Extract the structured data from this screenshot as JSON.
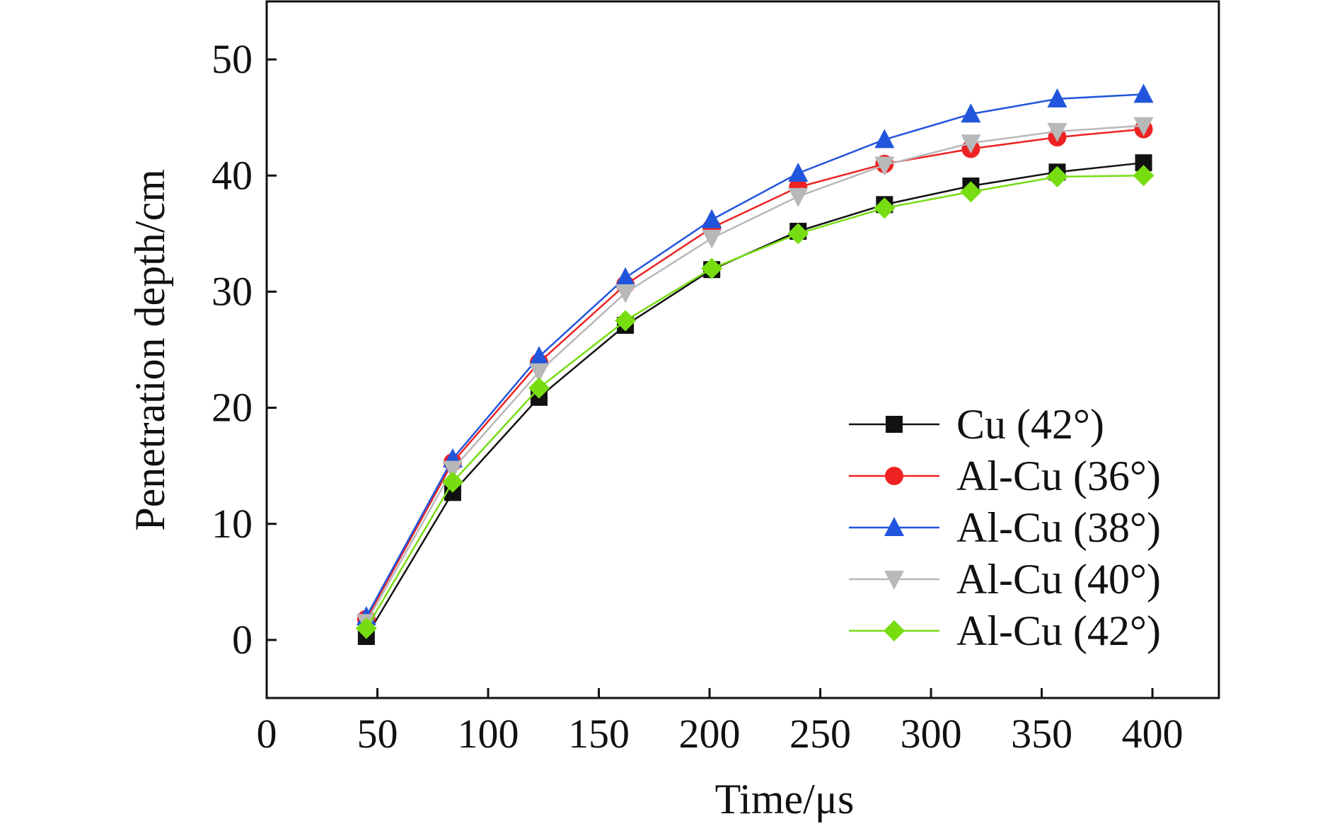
{
  "chart_data": {
    "type": "line",
    "title": "",
    "xlabel": "Time/μs",
    "ylabel": "Penetration depth/cm",
    "xlim": [
      0,
      430
    ],
    "ylim": [
      -5,
      55
    ],
    "xticks": [
      0,
      50,
      100,
      150,
      200,
      250,
      300,
      350,
      400
    ],
    "yticks": [
      0,
      10,
      20,
      30,
      40,
      50
    ],
    "x": [
      45,
      84,
      123,
      162,
      201,
      240,
      279,
      318,
      357,
      396
    ],
    "legend_position": "lower-right",
    "grid": false,
    "series": [
      {
        "name": "Cu (42°)",
        "color": "#111111",
        "marker": "square",
        "values": [
          0.3,
          12.7,
          20.9,
          27.1,
          31.9,
          35.2,
          37.5,
          39.1,
          40.3,
          41.1
        ]
      },
      {
        "name": "Al-Cu (36°)",
        "color": "#ee2222",
        "marker": "circle",
        "values": [
          1.8,
          15.3,
          23.9,
          30.6,
          35.5,
          39.0,
          41.0,
          42.3,
          43.3,
          44.0
        ]
      },
      {
        "name": "Al-Cu (38°)",
        "color": "#2255dd",
        "marker": "triangle-up",
        "values": [
          2.0,
          15.6,
          24.4,
          31.2,
          36.2,
          40.2,
          43.1,
          45.3,
          46.6,
          47.0
        ]
      },
      {
        "name": "Al-Cu (40°)",
        "color": "#b8b8b8",
        "marker": "triangle-down",
        "values": [
          1.5,
          14.7,
          23.1,
          29.9,
          34.6,
          38.2,
          40.9,
          42.8,
          43.8,
          44.3
        ]
      },
      {
        "name": "Al-Cu (42°)",
        "color": "#77dd11",
        "marker": "diamond",
        "values": [
          1.0,
          13.6,
          21.7,
          27.5,
          32.0,
          35.0,
          37.2,
          38.6,
          39.9,
          40.0
        ]
      }
    ]
  }
}
